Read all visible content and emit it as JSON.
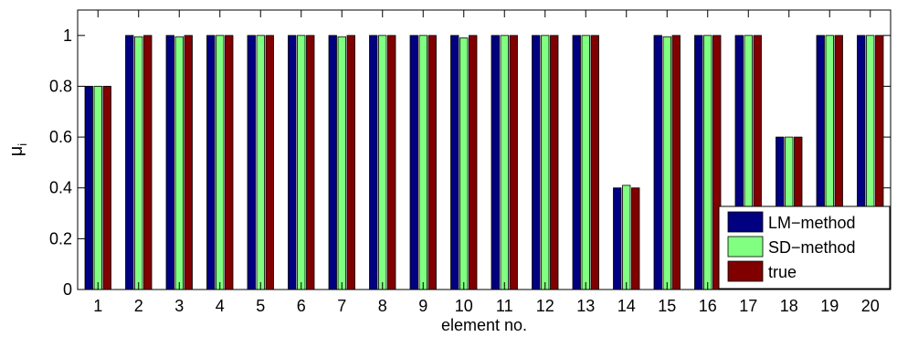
{
  "chart_data": {
    "type": "bar",
    "categories": [
      "1",
      "2",
      "3",
      "4",
      "5",
      "6",
      "7",
      "8",
      "9",
      "10",
      "11",
      "12",
      "13",
      "14",
      "15",
      "16",
      "17",
      "18",
      "19",
      "20"
    ],
    "series": [
      {
        "name": "LM−method",
        "color": "#000080",
        "values": [
          0.8,
          1.0,
          1.0,
          1.0,
          1.0,
          1.0,
          1.0,
          1.0,
          1.0,
          1.0,
          1.0,
          1.0,
          1.0,
          0.4,
          1.0,
          1.0,
          1.0,
          0.6,
          1.0,
          1.0
        ]
      },
      {
        "name": "SD−method",
        "color": "#80ff80",
        "values": [
          0.8,
          0.995,
          0.995,
          1.0,
          1.0,
          1.0,
          0.995,
          1.0,
          1.0,
          0.99,
          1.0,
          1.0,
          1.0,
          0.41,
          0.995,
          1.0,
          1.0,
          0.6,
          1.0,
          1.0
        ]
      },
      {
        "name": "true",
        "color": "#800000",
        "values": [
          0.8,
          1.0,
          1.0,
          1.0,
          1.0,
          1.0,
          1.0,
          1.0,
          1.0,
          1.0,
          1.0,
          1.0,
          1.0,
          0.4,
          1.0,
          1.0,
          1.0,
          0.6,
          1.0,
          1.0
        ]
      }
    ],
    "xlabel": "element no.",
    "ylabel": "μ",
    "ylabel_subscript": "i",
    "ylim": [
      0,
      1.1
    ],
    "yticks": [
      "0",
      "0.2",
      "0.4",
      "0.6",
      "0.8",
      "1"
    ],
    "ytick_values": [
      0,
      0.2,
      0.4,
      0.6,
      0.8,
      1.0
    ],
    "grid": false,
    "legend_position": "bottom-right"
  }
}
